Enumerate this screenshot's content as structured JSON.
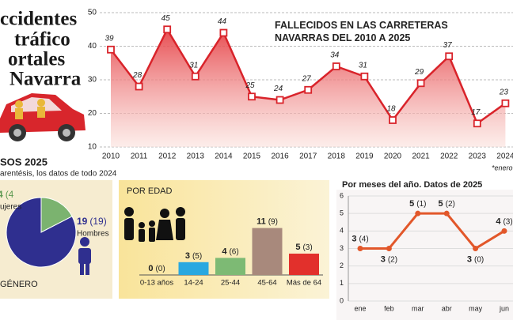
{
  "headline": [
    "ccidentes",
    "tráfico",
    "ortales",
    "Navarra"
  ],
  "section": {
    "title": "SOS 2025",
    "subtitle": "arentésis, los datos de todo 2024"
  },
  "chart_data": [
    {
      "type": "line",
      "title": "FALLECIDOS EN LAS CARRETERAS NAVARRAS DEL 2010 A 2025",
      "categories": [
        "2010",
        "2011",
        "2012",
        "2013",
        "2014",
        "2015",
        "2016",
        "2017",
        "2018",
        "2019",
        "2020",
        "2021",
        "2022",
        "2023",
        "2024"
      ],
      "values": [
        39,
        28,
        45,
        31,
        44,
        25,
        24,
        27,
        34,
        31,
        18,
        29,
        37,
        17,
        23
      ],
      "color": "#d9232a",
      "ylim": [
        10,
        50
      ],
      "yticks": [
        10,
        20,
        30,
        40,
        50
      ],
      "grid": true,
      "note": "*enero"
    },
    {
      "type": "pie",
      "title": "GÉNERO",
      "categories": [
        "ujeres",
        "Hombres"
      ],
      "values": [
        4,
        19
      ],
      "previous_labels": [
        "(4",
        "(19)"
      ],
      "colors": [
        "#7bb36f",
        "#2f2f8f"
      ]
    },
    {
      "type": "bar",
      "title": "POR EDAD",
      "categories": [
        "0-13 años",
        "14-24",
        "25-44",
        "45-64",
        "Más de 64"
      ],
      "values": [
        0,
        3,
        4,
        11,
        5
      ],
      "previous_labels": [
        "(0)",
        "(5)",
        "(6)",
        "(9)",
        "(3)"
      ],
      "colors": [
        "#cccccc",
        "#29a8e0",
        "#7dba74",
        "#a8897c",
        "#e2302c"
      ]
    },
    {
      "type": "line",
      "title": "Por meses del año. Datos de 2025",
      "categories": [
        "ene",
        "feb",
        "mar",
        "abr",
        "may",
        "jun"
      ],
      "values": [
        3,
        3,
        5,
        5,
        3,
        4
      ],
      "previous_labels": [
        "(4)",
        "(2)",
        "(1)",
        "(2)",
        "(0)",
        "(3)"
      ],
      "color": "#e2572a",
      "ylim": [
        0,
        6
      ],
      "yticks": [
        0,
        1,
        2,
        3,
        4,
        5,
        6
      ],
      "grid": true
    }
  ]
}
